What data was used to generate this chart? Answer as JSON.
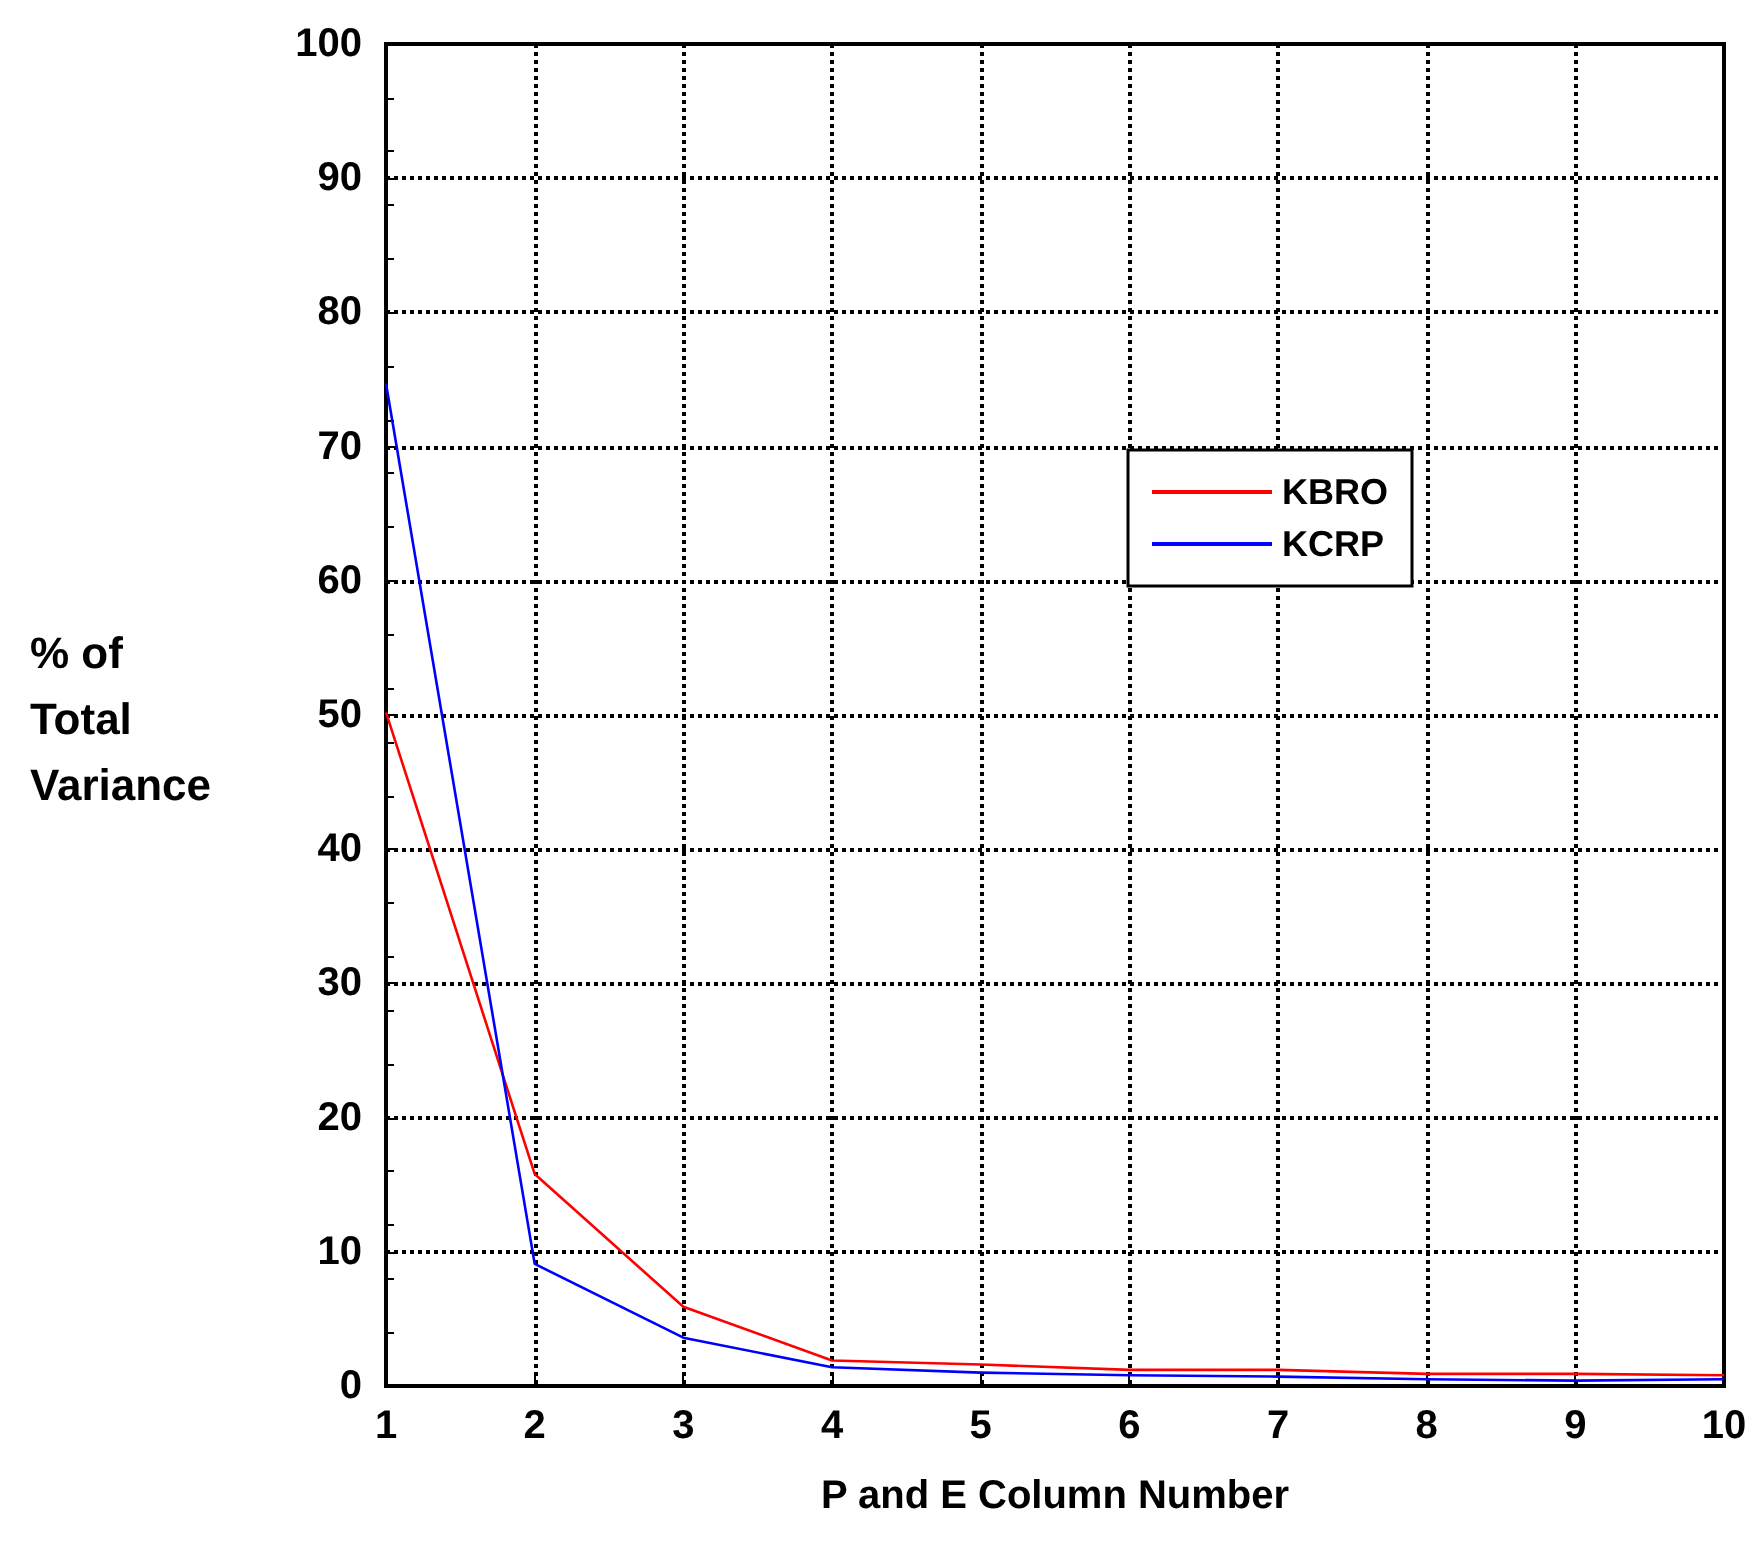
{
  "chart_data": {
    "type": "line",
    "xlabel": "P and E Column Number",
    "ylabel": "% of\nTotal\nVariance",
    "x": [
      1,
      2,
      3,
      4,
      5,
      6,
      7,
      8,
      9,
      10
    ],
    "series": [
      {
        "name": "KBRO",
        "color": "#ff0000",
        "values": [
          50.2,
          15.8,
          5.9,
          1.9,
          1.6,
          1.2,
          1.2,
          0.9,
          0.9,
          0.8
        ]
      },
      {
        "name": "KCRP",
        "color": "#0000ff",
        "values": [
          74.7,
          9.1,
          3.6,
          1.4,
          1.0,
          0.8,
          0.7,
          0.5,
          0.4,
          0.5
        ]
      }
    ],
    "xlim": [
      1,
      10
    ],
    "xticks": [
      1,
      2,
      3,
      4,
      5,
      6,
      7,
      8,
      9,
      10
    ],
    "ylim": [
      0,
      100
    ],
    "yticks": [
      0,
      10,
      20,
      30,
      40,
      50,
      60,
      70,
      80,
      90,
      100
    ],
    "grid": true,
    "legend": "top right",
    "marker": "none",
    "line_style": "solid"
  }
}
